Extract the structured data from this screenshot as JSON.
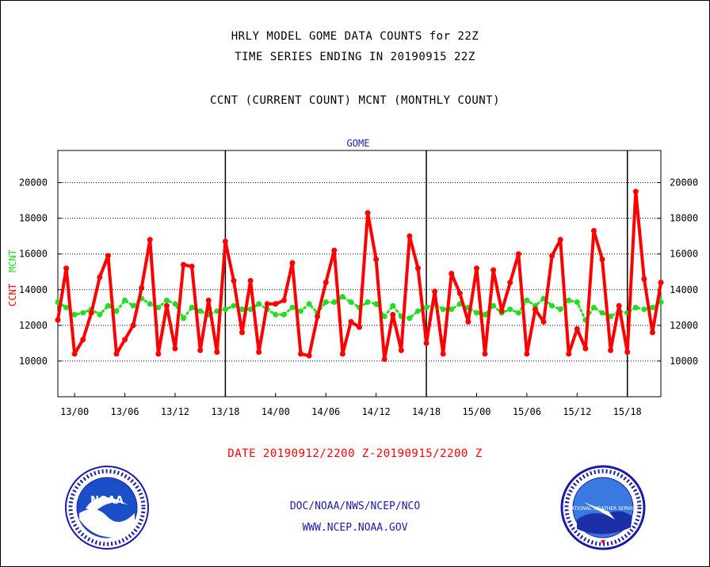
{
  "titles": {
    "line1": "HRLY MODEL GOME DATA COUNTS for 22Z",
    "line2": "TIME SERIES ENDING IN 20190915 22Z",
    "line3": "CCNT (CURRENT COUNT) MCNT (MONTHLY COUNT)"
  },
  "footer": {
    "date_range": "DATE 20190912/2200 Z-20190915/2200 Z",
    "org": "DOC/NOAA/NWS/NCEP/NCO",
    "url": "WWW.NCEP.NOAA.GOV"
  },
  "logos": {
    "left_text": "NOAA",
    "right_text": "NATIONAL WEATHER SERVICE"
  },
  "colors": {
    "ccnt": "#ff0000",
    "mcnt": "#22dd22",
    "dataset": "#1a1ab8",
    "credits": "#1a1aa8",
    "grid": "#000000"
  },
  "chart_data": {
    "type": "line",
    "title": "GOME",
    "ylabel_left": [
      "CCNT",
      "MCNT"
    ],
    "ylim": [
      8000,
      21800
    ],
    "yticks": [
      10000,
      12000,
      14000,
      16000,
      18000,
      20000
    ],
    "xlim_hours": [
      0,
      72
    ],
    "x_start": "2019-09-12 22:00Z",
    "x_ticks": [
      {
        "hour": 2,
        "label": "13/00"
      },
      {
        "hour": 8,
        "label": "13/06"
      },
      {
        "hour": 14,
        "label": "13/12"
      },
      {
        "hour": 20,
        "label": "13/18"
      },
      {
        "hour": 26,
        "label": "14/00"
      },
      {
        "hour": 32,
        "label": "14/06"
      },
      {
        "hour": 38,
        "label": "14/12"
      },
      {
        "hour": 44,
        "label": "14/18"
      },
      {
        "hour": 50,
        "label": "15/00"
      },
      {
        "hour": 56,
        "label": "15/06"
      },
      {
        "hour": 62,
        "label": "15/12"
      },
      {
        "hour": 68,
        "label": "15/18"
      }
    ],
    "day_boundaries_hours": [
      20,
      44,
      68
    ],
    "grid": "horizontal dotted",
    "series": [
      {
        "name": "CCNT",
        "values": [
          12300,
          15200,
          10400,
          11200,
          12700,
          14700,
          15900,
          10400,
          11200,
          12000,
          14100,
          16800,
          10400,
          13100,
          10700,
          15400,
          15300,
          10600,
          13400,
          10500,
          16700,
          14500,
          11600,
          14500,
          10500,
          13200,
          13200,
          13400,
          15500,
          10400,
          10300,
          12500,
          14400,
          16200,
          10400,
          12200,
          11900,
          18300,
          15700,
          10100,
          12600,
          10600,
          17000,
          15200,
          11000,
          13900,
          10400,
          14900,
          13800,
          12200,
          15200,
          10400,
          15100,
          12800,
          14400,
          16000,
          10400,
          12900,
          12200,
          15900,
          16800,
          10400,
          11800,
          10700,
          17300,
          15700,
          10600,
          13100,
          10500,
          19500,
          14600,
          11600,
          14400
        ]
      },
      {
        "name": "MCNT",
        "values": [
          13300,
          13000,
          12600,
          12700,
          12900,
          12600,
          13100,
          12800,
          13400,
          13100,
          13500,
          13200,
          13000,
          13400,
          13200,
          12400,
          13000,
          12800,
          12600,
          12800,
          12900,
          13100,
          12900,
          12900,
          13200,
          12900,
          12600,
          12600,
          13000,
          12800,
          13200,
          12700,
          13300,
          13300,
          13600,
          13300,
          13000,
          13300,
          13200,
          12500,
          13100,
          12500,
          12400,
          12800,
          13000,
          13200,
          12900,
          12900,
          13200,
          13000,
          12700,
          12600,
          13100,
          12700,
          12900,
          12700,
          13400,
          13100,
          13500,
          13100,
          12900,
          13400,
          13300,
          12300,
          13000,
          12700,
          12500,
          12800,
          12700,
          13000,
          12900,
          13000,
          13300
        ]
      }
    ]
  }
}
